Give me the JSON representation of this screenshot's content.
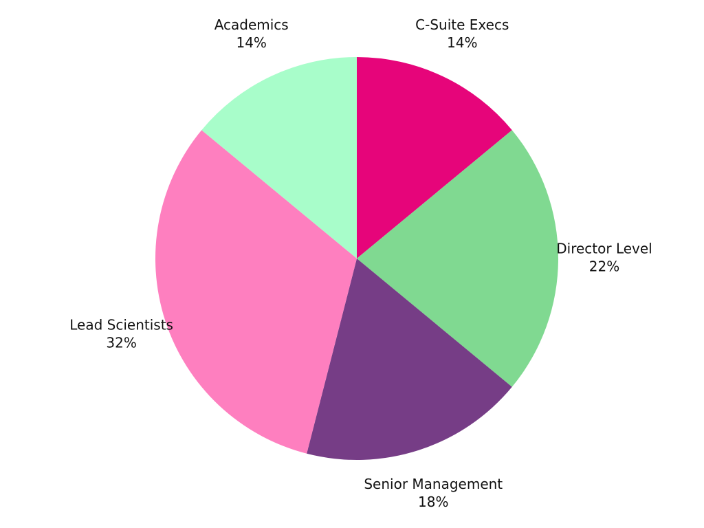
{
  "chart_data": {
    "type": "pie",
    "categories": [
      "C-Suite Execs",
      "Director Level",
      "Senior Management",
      "Lead Scientists",
      "Academics"
    ],
    "values": [
      14,
      22,
      18,
      32,
      14
    ],
    "value_labels": [
      "14%",
      "22%",
      "18%",
      "32%",
      "14%"
    ],
    "colors": [
      "#e6057a",
      "#80d991",
      "#763d86",
      "#fe7fbf",
      "#a8fdca"
    ]
  }
}
